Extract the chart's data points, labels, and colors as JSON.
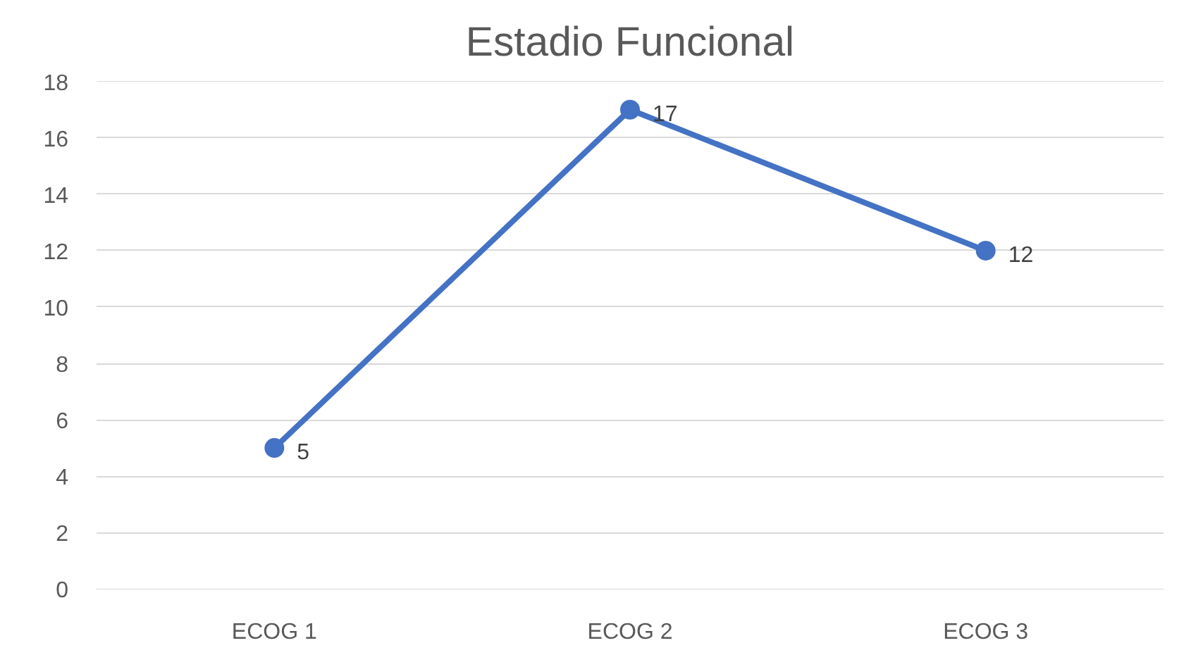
{
  "chart_data": {
    "type": "line",
    "title": "Estadio Funcional",
    "categories": [
      "ECOG 1",
      "ECOG 2",
      "ECOG 3"
    ],
    "series": [
      {
        "color": "#4472c4",
        "values": [
          5,
          17,
          12
        ]
      }
    ],
    "ylim": [
      0,
      18
    ],
    "yticks": [
      0,
      2,
      4,
      6,
      8,
      10,
      12,
      14,
      16,
      18
    ],
    "grid": "y",
    "marker": "circle",
    "data_labels": true
  }
}
